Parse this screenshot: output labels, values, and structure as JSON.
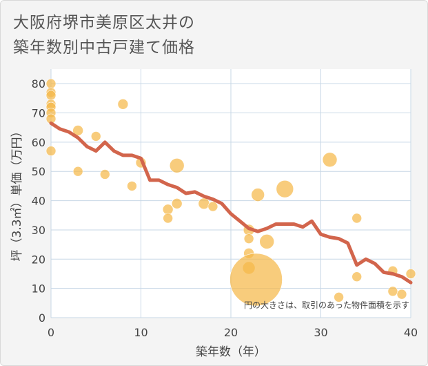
{
  "title": {
    "line1": "大阪府堺市美原区太井の",
    "line2": "築年数別中古戸建て価格"
  },
  "chart_data": {
    "type": "scatter",
    "xlabel": "築年数（年）",
    "ylabel": "坪（3.3㎡）単価（万円）",
    "xlim": [
      0,
      40
    ],
    "ylim": [
      0,
      85
    ],
    "xticks": [
      0,
      10,
      20,
      30,
      40
    ],
    "yticks": [
      0,
      10,
      20,
      30,
      40,
      50,
      60,
      70,
      80
    ],
    "grid": true,
    "annotation": "円の大きさは、取引のあった物件面積を示す",
    "colors": {
      "bubble": "#f5b84a",
      "line": "#d2654c",
      "grid": "#c7d7e6",
      "plot_bg": "#ffffff"
    },
    "bubbles": [
      {
        "x": 0,
        "y": 80,
        "r": 7
      },
      {
        "x": 0,
        "y": 77,
        "r": 7
      },
      {
        "x": 0,
        "y": 76,
        "r": 7
      },
      {
        "x": 0,
        "y": 73,
        "r": 7
      },
      {
        "x": 0,
        "y": 72,
        "r": 7
      },
      {
        "x": 0,
        "y": 70,
        "r": 7
      },
      {
        "x": 0,
        "y": 68,
        "r": 7
      },
      {
        "x": 0,
        "y": 57,
        "r": 7
      },
      {
        "x": 3,
        "y": 64,
        "r": 7.5
      },
      {
        "x": 3,
        "y": 50,
        "r": 7
      },
      {
        "x": 5,
        "y": 62,
        "r": 7
      },
      {
        "x": 6,
        "y": 49,
        "r": 7
      },
      {
        "x": 8,
        "y": 73,
        "r": 7.5
      },
      {
        "x": 9,
        "y": 45,
        "r": 7
      },
      {
        "x": 10,
        "y": 53,
        "r": 7.5
      },
      {
        "x": 13,
        "y": 37,
        "r": 7.5
      },
      {
        "x": 13,
        "y": 34,
        "r": 7
      },
      {
        "x": 14,
        "y": 52,
        "r": 10.5
      },
      {
        "x": 14,
        "y": 39,
        "r": 7.5
      },
      {
        "x": 17,
        "y": 39,
        "r": 8
      },
      {
        "x": 18,
        "y": 38,
        "r": 7
      },
      {
        "x": 22,
        "y": 30,
        "r": 8
      },
      {
        "x": 22,
        "y": 27,
        "r": 7
      },
      {
        "x": 22,
        "y": 22,
        "r": 7.5
      },
      {
        "x": 22,
        "y": 17,
        "r": 9
      },
      {
        "x": 22.8,
        "y": 13,
        "r": 38
      },
      {
        "x": 23,
        "y": 42,
        "r": 9.5
      },
      {
        "x": 24,
        "y": 26,
        "r": 10.5
      },
      {
        "x": 26,
        "y": 44,
        "r": 12.5
      },
      {
        "x": 31,
        "y": 54,
        "r": 10.5
      },
      {
        "x": 32,
        "y": 7,
        "r": 7
      },
      {
        "x": 34,
        "y": 34,
        "r": 7
      },
      {
        "x": 34,
        "y": 14,
        "r": 7
      },
      {
        "x": 38,
        "y": 16,
        "r": 7
      },
      {
        "x": 38,
        "y": 9,
        "r": 7
      },
      {
        "x": 39,
        "y": 8,
        "r": 7
      },
      {
        "x": 40,
        "y": 15,
        "r": 7
      }
    ],
    "trend": {
      "x": [
        0,
        1,
        2,
        3,
        4,
        5,
        6,
        7,
        8,
        9,
        10,
        11,
        12,
        13,
        14,
        15,
        16,
        17,
        18,
        19,
        20,
        21,
        22,
        23,
        24,
        25,
        26,
        27,
        28,
        29,
        30,
        31,
        32,
        33,
        34,
        35,
        36,
        37,
        38,
        39,
        40
      ],
      "y": [
        66.5,
        64.5,
        63.5,
        61.5,
        58.5,
        57,
        60,
        57,
        55.5,
        55.5,
        54.5,
        47,
        47,
        45.5,
        44.5,
        42.5,
        43,
        41.5,
        40.5,
        39,
        35.5,
        33,
        30.5,
        29.5,
        30.5,
        32,
        32,
        32,
        31,
        33,
        28.5,
        27.5,
        27,
        25.5,
        18,
        20,
        18.5,
        15.5,
        15,
        14,
        12
      ]
    }
  }
}
